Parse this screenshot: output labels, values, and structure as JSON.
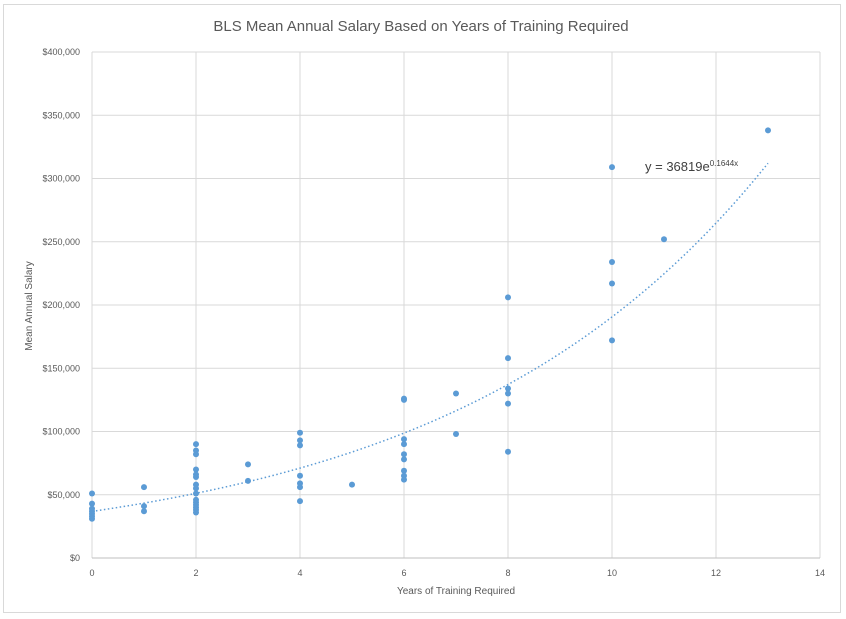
{
  "chart_data": {
    "type": "scatter",
    "title": "BLS Mean Annual Salary Based on Years of Training Required",
    "xlabel": "Years of Training Required",
    "ylabel": "Mean Annual Salary",
    "xlim": [
      0,
      14
    ],
    "ylim": [
      0,
      400000
    ],
    "x_ticks": [
      0,
      2,
      4,
      6,
      8,
      10,
      12,
      14
    ],
    "y_ticks": [
      0,
      50000,
      100000,
      150000,
      200000,
      250000,
      300000,
      350000,
      400000
    ],
    "y_tick_labels": [
      "$0",
      "$50,000",
      "$100,000",
      "$150,000",
      "$200,000",
      "$250,000",
      "$300,000",
      "$350,000",
      "$400,000"
    ],
    "grid": true,
    "legend": "none",
    "marker_color": "#5b9bd5",
    "trendline": {
      "type": "exponential",
      "a": 36819,
      "b": 0.1644,
      "style": "dotted",
      "color": "#5b9bd5",
      "equation_base": "y = 36819e",
      "equation_exponent": "0.1644x"
    },
    "points": [
      [
        0,
        51000
      ],
      [
        0,
        43000
      ],
      [
        0,
        39000
      ],
      [
        0,
        37000
      ],
      [
        0,
        35000
      ],
      [
        0,
        33000
      ],
      [
        0,
        31000
      ],
      [
        1,
        56000
      ],
      [
        1,
        41000
      ],
      [
        1,
        37000
      ],
      [
        2,
        90000
      ],
      [
        2,
        85000
      ],
      [
        2,
        82000
      ],
      [
        2,
        70000
      ],
      [
        2,
        66000
      ],
      [
        2,
        64000
      ],
      [
        2,
        58000
      ],
      [
        2,
        55000
      ],
      [
        2,
        51000
      ],
      [
        2,
        46000
      ],
      [
        2,
        44000
      ],
      [
        2,
        42000
      ],
      [
        2,
        40000
      ],
      [
        2,
        38000
      ],
      [
        2,
        36000
      ],
      [
        3,
        74000
      ],
      [
        3,
        61000
      ],
      [
        4,
        99000
      ],
      [
        4,
        93000
      ],
      [
        4,
        89000
      ],
      [
        4,
        65000
      ],
      [
        4,
        59000
      ],
      [
        4,
        56000
      ],
      [
        4,
        45000
      ],
      [
        5,
        58000
      ],
      [
        6,
        126000
      ],
      [
        6,
        125000
      ],
      [
        6,
        94000
      ],
      [
        6,
        90000
      ],
      [
        6,
        82000
      ],
      [
        6,
        78000
      ],
      [
        6,
        69000
      ],
      [
        6,
        65000
      ],
      [
        6,
        62000
      ],
      [
        7,
        130000
      ],
      [
        7,
        98000
      ],
      [
        8,
        206000
      ],
      [
        8,
        158000
      ],
      [
        8,
        134000
      ],
      [
        8,
        130000
      ],
      [
        8,
        122000
      ],
      [
        8,
        84000
      ],
      [
        10,
        309000
      ],
      [
        10,
        234000
      ],
      [
        10,
        217000
      ],
      [
        10,
        172000
      ],
      [
        11,
        252000
      ],
      [
        13,
        338000
      ]
    ]
  }
}
